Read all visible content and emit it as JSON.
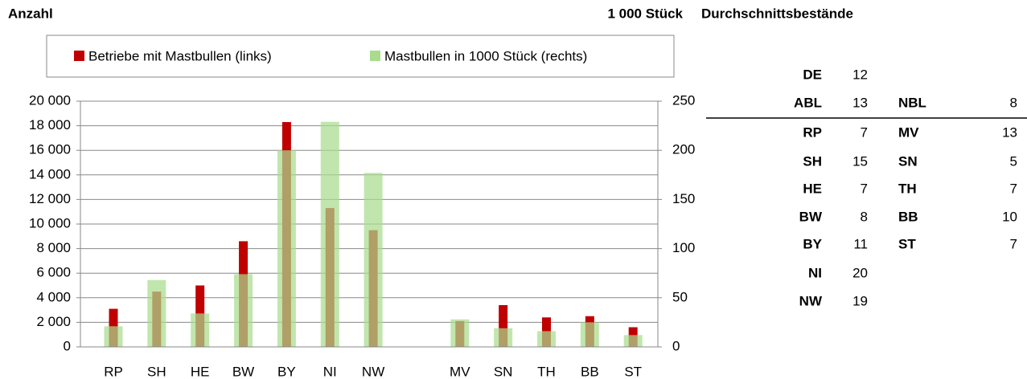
{
  "chart_data": {
    "type": "bar",
    "y_label": "Anzahl",
    "y2_label": "1 000 Stück",
    "categories": [
      "RP",
      "SH",
      "HE",
      "BW",
      "BY",
      "NI",
      "NW",
      null,
      "MV",
      "SN",
      "TH",
      "BB",
      "ST"
    ],
    "series": [
      {
        "name": "Betriebe mit Mastbullen (links)",
        "color": "#c00000",
        "axis": "y",
        "values": [
          3100,
          4500,
          5000,
          8600,
          18300,
          11300,
          9500,
          null,
          2100,
          3400,
          2400,
          2500,
          1600
        ]
      },
      {
        "name": "Mastbullen in 1000 Stück (rechts)",
        "color": "#a9dc8e",
        "axis": "y2",
        "values": [
          21,
          68,
          34,
          74,
          200,
          229,
          177,
          null,
          28,
          19,
          16,
          25,
          12
        ]
      }
    ],
    "ylim": [
      0,
      20000
    ],
    "yticks": [
      0,
      {
        "value": 2000,
        "label": "2 000"
      },
      {
        "value": 4000,
        "label": "4 000"
      },
      {
        "value": 6000,
        "label": "6 000"
      },
      {
        "value": 8000,
        "label": "8 000"
      },
      {
        "value": 10000,
        "label": "10 000"
      },
      {
        "value": 12000,
        "label": "12 000"
      },
      {
        "value": 14000,
        "label": "14 000"
      },
      {
        "value": 16000,
        "label": "16 000"
      },
      {
        "value": 18000,
        "label": "18 000"
      },
      {
        "value": 20000,
        "label": "20 000"
      }
    ],
    "y2lim": [
      0,
      250
    ],
    "y2ticks": [
      0,
      50,
      100,
      150,
      200,
      250
    ],
    "grid": true,
    "legend": "top"
  },
  "table": {
    "title": "Durchschnittsbestände",
    "rows": [
      [
        "DE",
        12
      ],
      [
        "ABL",
        13,
        "NBL",
        8
      ],
      [
        "RP",
        7,
        "MV",
        13
      ],
      [
        "SH",
        15,
        "SN",
        5
      ],
      [
        "HE",
        7,
        "TH",
        7
      ],
      [
        "BW",
        8,
        "BB",
        10
      ],
      [
        "BY",
        11,
        "ST",
        7
      ],
      [
        "NI",
        20
      ],
      [
        "NW",
        19
      ]
    ]
  }
}
